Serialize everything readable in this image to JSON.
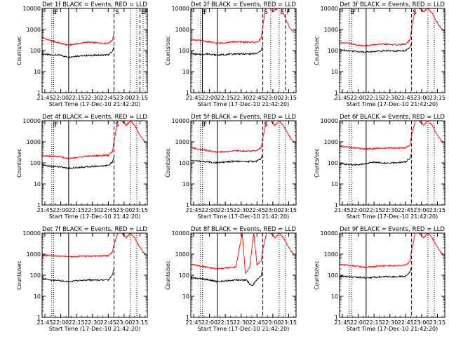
{
  "figure": {
    "x_start": "21:42:20",
    "x_end": "23:22:00",
    "xticks": [
      "21:45",
      "22:00",
      "22:15",
      "22:30",
      "22:45",
      "23:00",
      "23:15"
    ],
    "ytick_labels": [
      "1",
      "10",
      "100",
      "1000",
      "10000"
    ],
    "ylabel": "Counts/sec",
    "xlabel": "Start Time (17-Dec-10 21:42:20)",
    "colors": {
      "events": "#000000",
      "lld": "#ff0000"
    }
  },
  "chart_data": [
    {
      "type": "line",
      "title": "Det 1f BLACK = Events, RED = LLD",
      "ylim": [
        1,
        10000
      ],
      "yscale": "log",
      "markers": [
        {
          "x": "21:51:30",
          "style": "dotted",
          "label": "E"
        },
        {
          "x": "21:53:20",
          "style": "dotted",
          "label": "F"
        },
        {
          "x": "22:07:30",
          "style": "solid",
          "label": ""
        },
        {
          "x": "22:50:30",
          "style": "dashed",
          "label": "S"
        },
        {
          "x": "23:06:00",
          "style": "dotted",
          "label": ""
        },
        {
          "x": "23:12:00",
          "style": "dotted",
          "label": ""
        },
        {
          "x": "23:15:00",
          "style": "dashed",
          "label": "E"
        },
        {
          "x": "23:18:00",
          "style": "dotted",
          "label": "F"
        }
      ],
      "series": [
        {
          "name": "Events",
          "x": [
            "21:42:20",
            "21:50",
            "22:00",
            "22:07",
            "22:15",
            "22:25",
            "22:35",
            "22:45",
            "22:49",
            "22:50"
          ],
          "y": [
            70,
            62,
            60,
            48,
            55,
            58,
            60,
            62,
            90,
            140
          ]
        },
        {
          "name": "LLD",
          "x": [
            "21:42:20",
            "21:50",
            "22:00",
            "22:07",
            "22:15",
            "22:25",
            "22:35",
            "22:45",
            "22:49",
            "22:50"
          ],
          "y": [
            420,
            300,
            220,
            180,
            210,
            250,
            230,
            220,
            320,
            600
          ]
        }
      ]
    },
    {
      "type": "line",
      "title": "Det 2f BLACK = Events, RED = LLD",
      "ylim": [
        1,
        10000
      ],
      "yscale": "log",
      "markers": [
        {
          "x": "21:51:30",
          "style": "dotted",
          "label": "E"
        },
        {
          "x": "21:53:20",
          "style": "solid",
          "label": "F"
        },
        {
          "x": "22:07:30",
          "style": "solid",
          "label": ""
        },
        {
          "x": "22:50:30",
          "style": "dashed",
          "label": "S"
        },
        {
          "x": "22:58:00",
          "style": "dotted",
          "label": ""
        },
        {
          "x": "23:06:00",
          "style": "dotted",
          "label": "E"
        },
        {
          "x": "23:12:00",
          "style": "dashed",
          "label": "F"
        }
      ],
      "series": [
        {
          "name": "Events",
          "x": [
            "21:42:20",
            "21:50",
            "22:00",
            "22:07",
            "22:15",
            "22:25",
            "22:35",
            "22:45",
            "22:49",
            "22:50"
          ],
          "y": [
            70,
            65,
            70,
            60,
            65,
            70,
            68,
            72,
            100,
            160
          ]
        },
        {
          "name": "LLD",
          "x": [
            "21:42:20",
            "21:50",
            "22:00",
            "22:07",
            "22:15",
            "22:25",
            "22:35",
            "22:45",
            "22:49",
            "22:50",
            "22:53",
            "22:57",
            "23:00",
            "23:04",
            "23:08",
            "23:13",
            "23:16",
            "23:20"
          ],
          "y": [
            350,
            300,
            260,
            220,
            240,
            260,
            250,
            250,
            380,
            900,
            10000,
            10000,
            7000,
            10000,
            10000,
            2500,
            1200,
            700
          ]
        }
      ]
    },
    {
      "type": "line",
      "title": "Det 3f BLACK = Events, RED = LLD",
      "ylim": [
        1,
        10000
      ],
      "yscale": "log",
      "markers": [
        {
          "x": "21:51:30",
          "style": "dotted",
          "label": "E"
        },
        {
          "x": "21:53:20",
          "style": "dotted",
          "label": "F"
        },
        {
          "x": "22:07:30",
          "style": "solid",
          "label": ""
        },
        {
          "x": "22:50:30",
          "style": "dashed",
          "label": "S"
        },
        {
          "x": "23:06:00",
          "style": "dotted",
          "label": ""
        },
        {
          "x": "23:12:00",
          "style": "dotted",
          "label": ""
        }
      ],
      "series": [
        {
          "name": "Events",
          "x": [
            "21:42:20",
            "21:50",
            "22:00",
            "22:07",
            "22:15",
            "22:25",
            "22:35",
            "22:45",
            "22:49",
            "22:50"
          ],
          "y": [
            110,
            100,
            90,
            85,
            90,
            100,
            95,
            100,
            140,
            200
          ]
        },
        {
          "name": "LLD",
          "x": [
            "21:42:20",
            "21:50",
            "22:00",
            "22:07",
            "22:15",
            "22:25",
            "22:35",
            "22:45",
            "22:49",
            "22:50",
            "22:54",
            "22:58",
            "23:02",
            "23:06",
            "23:10",
            "23:14",
            "23:20"
          ],
          "y": [
            250,
            220,
            180,
            170,
            190,
            200,
            190,
            200,
            320,
            700,
            10000,
            10000,
            7000,
            10000,
            6000,
            2500,
            900
          ]
        }
      ]
    },
    {
      "type": "line",
      "title": "Det 4f BLACK = Events, RED = LLD",
      "ylim": [
        1,
        10000
      ],
      "yscale": "log",
      "markers": [
        {
          "x": "21:51:30",
          "style": "dotted",
          "label": "E"
        },
        {
          "x": "21:53:20",
          "style": "dotted",
          "label": "F"
        },
        {
          "x": "22:07:30",
          "style": "solid",
          "label": ""
        },
        {
          "x": "22:50:30",
          "style": "dashed",
          "label": "S"
        },
        {
          "x": "23:06:00",
          "style": "dotted",
          "label": ""
        },
        {
          "x": "23:12:00",
          "style": "dotted",
          "label": ""
        }
      ],
      "series": [
        {
          "name": "Events",
          "x": [
            "21:42:20",
            "21:50",
            "22:00",
            "22:07",
            "22:15",
            "22:25",
            "22:35",
            "22:45",
            "22:49",
            "22:50"
          ],
          "y": [
            80,
            70,
            65,
            55,
            60,
            65,
            70,
            75,
            110,
            170
          ]
        },
        {
          "name": "LLD",
          "x": [
            "21:42:20",
            "21:50",
            "22:00",
            "22:07",
            "22:15",
            "22:25",
            "22:35",
            "22:45",
            "22:49",
            "22:50",
            "22:54",
            "22:58",
            "23:02",
            "23:06",
            "23:10",
            "23:14",
            "23:20"
          ],
          "y": [
            230,
            210,
            190,
            160,
            180,
            210,
            220,
            230,
            350,
            800,
            10000,
            10000,
            6000,
            10000,
            6000,
            2500,
            900
          ]
        }
      ]
    },
    {
      "type": "line",
      "title": "Det 5f BLACK = Events, RED = LLD",
      "ylim": [
        1,
        10000
      ],
      "yscale": "log",
      "markers": [
        {
          "x": "21:51:30",
          "style": "dotted",
          "label": "E"
        },
        {
          "x": "21:53:20",
          "style": "dotted",
          "label": "F"
        },
        {
          "x": "22:07:30",
          "style": "solid",
          "label": ""
        },
        {
          "x": "22:50:30",
          "style": "dashed",
          "label": "S"
        },
        {
          "x": "23:06:00",
          "style": "dotted",
          "label": ""
        },
        {
          "x": "23:12:00",
          "style": "dotted",
          "label": ""
        }
      ],
      "series": [
        {
          "name": "Events",
          "x": [
            "21:42:20",
            "21:50",
            "22:00",
            "22:07",
            "22:15",
            "22:25",
            "22:35",
            "22:45",
            "22:49",
            "22:50"
          ],
          "y": [
            130,
            120,
            110,
            100,
            110,
            120,
            115,
            120,
            170,
            250
          ]
        },
        {
          "name": "LLD",
          "x": [
            "21:42:20",
            "21:50",
            "22:00",
            "22:07",
            "22:15",
            "22:25",
            "22:35",
            "22:45",
            "22:49",
            "22:50",
            "22:54",
            "22:58",
            "23:02",
            "23:06",
            "23:10",
            "23:14",
            "23:20"
          ],
          "y": [
            520,
            450,
            380,
            320,
            340,
            380,
            360,
            380,
            520,
            1200,
            10000,
            10000,
            6000,
            10000,
            6000,
            2500,
            900
          ]
        }
      ]
    },
    {
      "type": "line",
      "title": "Det 6f BLACK = Events, RED = LLD",
      "ylim": [
        1,
        10000
      ],
      "yscale": "log",
      "markers": [
        {
          "x": "21:51:30",
          "style": "dotted",
          "label": ""
        },
        {
          "x": "21:53:20",
          "style": "dotted",
          "label": ""
        },
        {
          "x": "22:07:30",
          "style": "solid",
          "label": ""
        },
        {
          "x": "22:50:30",
          "style": "dashed",
          "label": ""
        },
        {
          "x": "23:06:00",
          "style": "dotted",
          "label": ""
        },
        {
          "x": "23:12:00",
          "style": "dotted",
          "label": ""
        }
      ],
      "series": [
        {
          "name": "Events",
          "x": [
            "21:42:20",
            "21:50",
            "22:00",
            "22:07",
            "22:15",
            "22:25",
            "22:35",
            "22:45",
            "22:49",
            "22:50"
          ],
          "y": [
            90,
            85,
            80,
            90,
            110,
            95,
            100,
            110,
            170,
            260
          ]
        },
        {
          "name": "LLD",
          "x": [
            "21:42:20",
            "21:50",
            "22:00",
            "22:07",
            "22:15",
            "22:25",
            "22:35",
            "22:45",
            "22:49",
            "22:50",
            "22:54",
            "22:58",
            "23:02",
            "23:06",
            "23:10",
            "23:14",
            "23:20"
          ],
          "y": [
            620,
            560,
            500,
            460,
            480,
            500,
            500,
            520,
            700,
            1500,
            10000,
            10000,
            6000,
            10000,
            6000,
            2500,
            900
          ]
        }
      ]
    },
    {
      "type": "line",
      "title": "Det 7f BLACK = Events, RED = LLD",
      "ylim": [
        1,
        10000
      ],
      "yscale": "log",
      "markers": [
        {
          "x": "21:51:30",
          "style": "dotted",
          "label": ""
        },
        {
          "x": "21:53:20",
          "style": "dotted",
          "label": ""
        },
        {
          "x": "22:07:30",
          "style": "solid",
          "label": ""
        },
        {
          "x": "22:50:30",
          "style": "dashed",
          "label": ""
        },
        {
          "x": "23:06:00",
          "style": "dotted",
          "label": ""
        },
        {
          "x": "23:12:00",
          "style": "dotted",
          "label": ""
        }
      ],
      "series": [
        {
          "name": "Events",
          "x": [
            "21:42:20",
            "21:50",
            "22:00",
            "22:07",
            "22:15",
            "22:25",
            "22:35",
            "22:45",
            "22:49",
            "22:50"
          ],
          "y": [
            70,
            60,
            55,
            50,
            55,
            60,
            58,
            60,
            100,
            180
          ]
        },
        {
          "name": "LLD",
          "x": [
            "21:42:20",
            "21:50",
            "22:00",
            "22:07",
            "22:15",
            "22:25",
            "22:35",
            "22:45",
            "22:49",
            "22:50",
            "22:54",
            "22:58",
            "23:02",
            "23:06",
            "23:10",
            "23:14",
            "23:20"
          ],
          "y": [
            900,
            850,
            800,
            750,
            780,
            800,
            820,
            850,
            1200,
            2500,
            10000,
            10000,
            6000,
            10000,
            6000,
            2500,
            900
          ]
        }
      ]
    },
    {
      "type": "line",
      "title": "Det 8f BLACK = Events, RED = LLD",
      "ylim": [
        1,
        10000
      ],
      "yscale": "log",
      "markers": [
        {
          "x": "21:51:30",
          "style": "dotted",
          "label": ""
        },
        {
          "x": "21:53:20",
          "style": "dotted",
          "label": ""
        },
        {
          "x": "22:07:30",
          "style": "solid",
          "label": ""
        },
        {
          "x": "22:50:30",
          "style": "dashed",
          "label": ""
        },
        {
          "x": "23:06:00",
          "style": "dotted",
          "label": ""
        },
        {
          "x": "23:12:00",
          "style": "dotted",
          "label": ""
        }
      ],
      "series": [
        {
          "name": "Events",
          "x": [
            "21:42:20",
            "21:50",
            "22:00",
            "22:07",
            "22:15",
            "22:25",
            "22:35",
            "22:40",
            "22:45",
            "22:49",
            "22:50"
          ],
          "y": [
            75,
            70,
            60,
            50,
            55,
            60,
            58,
            30,
            60,
            100,
            180
          ]
        },
        {
          "name": "LLD",
          "x": [
            "21:42:20",
            "21:50",
            "22:00",
            "22:07",
            "22:15",
            "22:25",
            "22:31",
            "22:34",
            "22:38",
            "22:42",
            "22:45",
            "22:49",
            "22:50",
            "22:54",
            "22:58",
            "23:02",
            "23:06",
            "23:10",
            "23:14",
            "23:20"
          ],
          "y": [
            330,
            280,
            230,
            200,
            220,
            240,
            10000,
            120,
            240,
            10000,
            300,
            500,
            1200,
            10000,
            10000,
            6000,
            10000,
            6000,
            2500,
            900
          ]
        }
      ]
    },
    {
      "type": "line",
      "title": "Det 9f BLACK = Events, RED = LLD",
      "ylim": [
        1,
        10000
      ],
      "yscale": "log",
      "markers": [
        {
          "x": "21:51:30",
          "style": "dotted",
          "label": ""
        },
        {
          "x": "21:53:20",
          "style": "dotted",
          "label": ""
        },
        {
          "x": "22:07:30",
          "style": "solid",
          "label": ""
        },
        {
          "x": "22:50:30",
          "style": "dashed",
          "label": ""
        },
        {
          "x": "23:06:00",
          "style": "dotted",
          "label": ""
        },
        {
          "x": "23:12:00",
          "style": "dotted",
          "label": ""
        }
      ],
      "series": [
        {
          "name": "Events",
          "x": [
            "21:42:20",
            "21:50",
            "22:00",
            "22:07",
            "22:15",
            "22:25",
            "22:35",
            "22:45",
            "22:49",
            "22:50"
          ],
          "y": [
            90,
            85,
            80,
            75,
            80,
            85,
            85,
            90,
            140,
            220
          ]
        },
        {
          "name": "LLD",
          "x": [
            "21:42:20",
            "21:50",
            "22:00",
            "22:07",
            "22:15",
            "22:25",
            "22:35",
            "22:45",
            "22:49",
            "22:50",
            "22:54",
            "22:58",
            "23:02",
            "23:06",
            "23:10",
            "23:14",
            "23:20"
          ],
          "y": [
            330,
            300,
            270,
            240,
            260,
            280,
            280,
            300,
            450,
            1100,
            10000,
            10000,
            6000,
            10000,
            6000,
            2500,
            900
          ]
        }
      ]
    }
  ]
}
